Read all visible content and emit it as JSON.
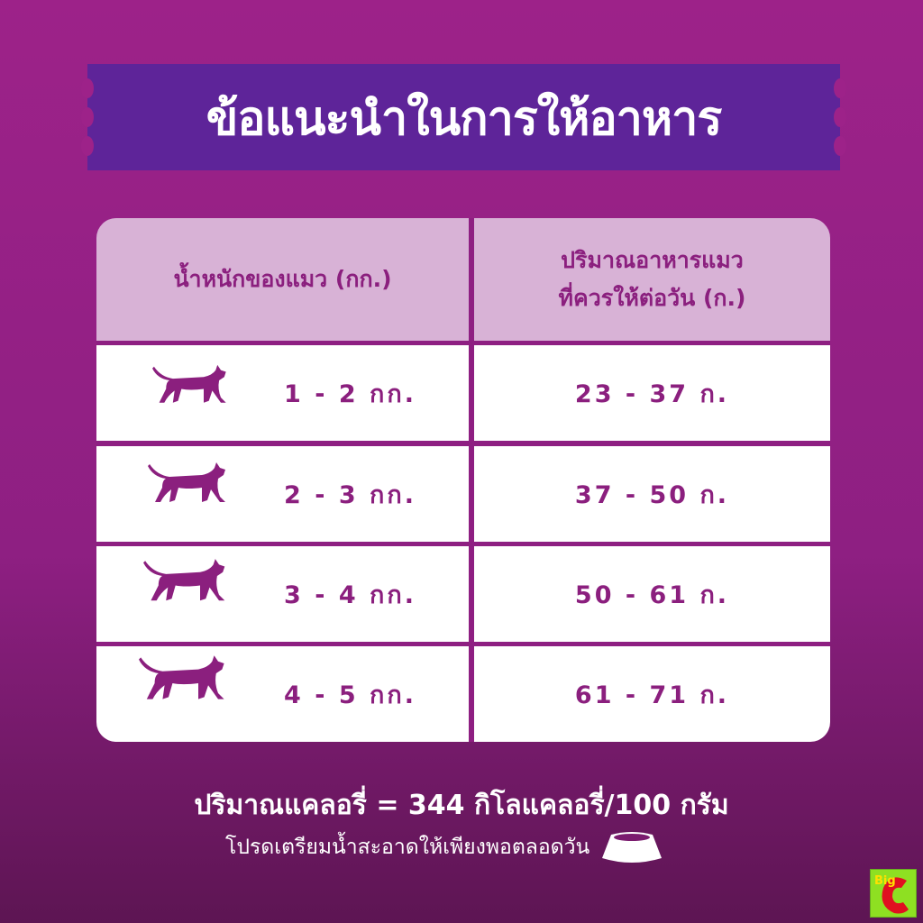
{
  "title": "ข้อแนะนำในการให้อาหาร",
  "table": {
    "headers": [
      "น้ำหนักของแมว (กก.)",
      "ปริมาณอาหารแมว",
      "ที่ควรให้ต่อวัน (ก.)"
    ],
    "rows": [
      {
        "weight": "1 - 2 กก.",
        "amount": "23 - 37 ก."
      },
      {
        "weight": "2 - 3 กก.",
        "amount": "37 - 50 ก."
      },
      {
        "weight": "3 - 4 กก.",
        "amount": "50 - 61 ก."
      },
      {
        "weight": "4 - 5 กก.",
        "amount": "61 - 71 ก."
      }
    ]
  },
  "calorie_text": "ปริมาณแคลอรี่ = 344 กิโลแคลอรี่/100 กรัม",
  "water_text": "โปรดเตรียมน้ำสะอาดให้เพียงพอตลอดวัน",
  "logo": "Big C",
  "colors": {
    "banner": "#5e2499",
    "header": "#d8b2d6",
    "text": "#8b1f7e"
  }
}
